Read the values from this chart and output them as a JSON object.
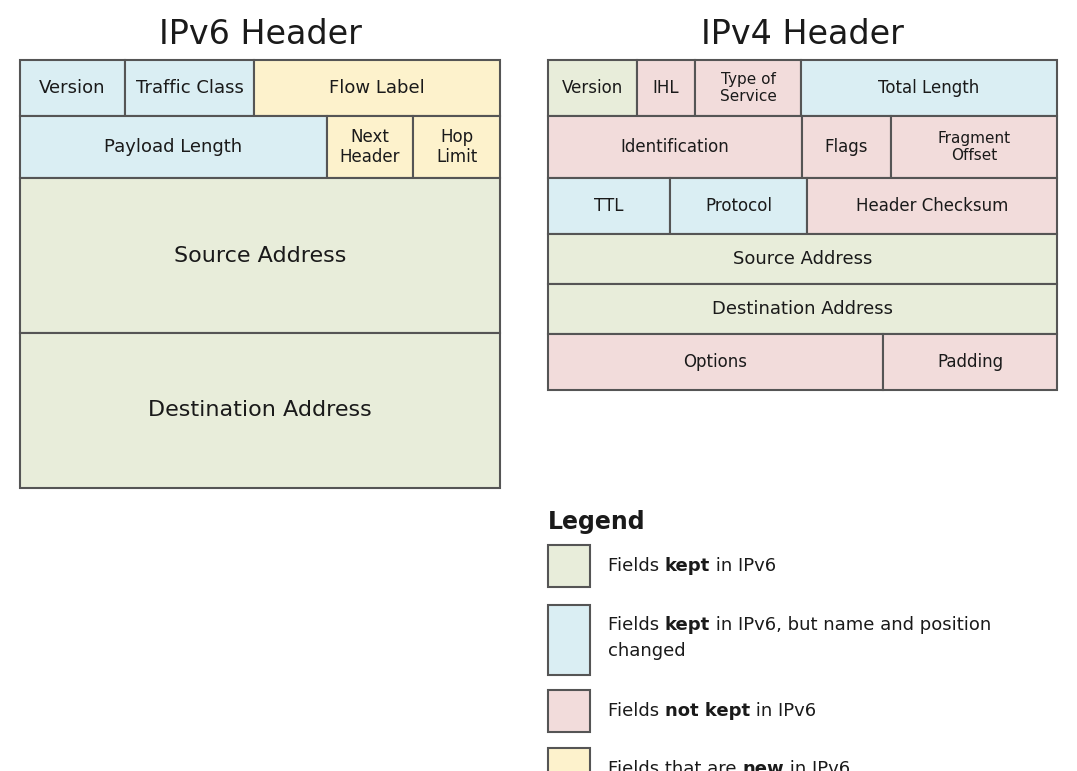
{
  "colors": {
    "kept": "#e8edda",
    "changed": "#daeef3",
    "not_kept": "#f2dcdb",
    "new": "#fdf2cc",
    "border": "#555555",
    "bg": "#ffffff",
    "text": "#1a1a1a"
  },
  "ipv6_title": "IPv6 Header",
  "ipv4_title": "IPv4 Header",
  "legend_title": "Legend"
}
